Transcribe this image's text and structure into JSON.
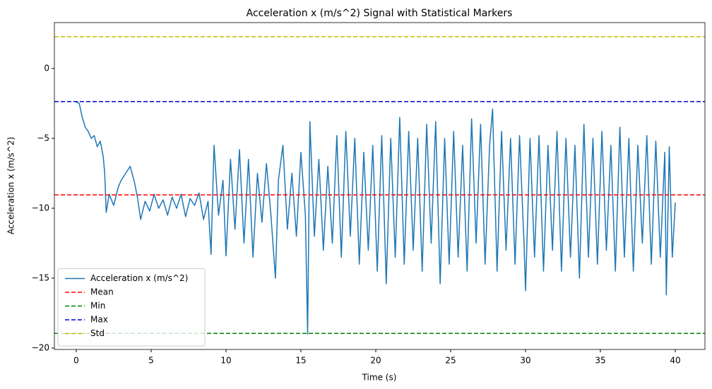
{
  "chart_data": {
    "type": "line",
    "title": "Acceleration x (m/s^2) Signal with Statistical Markers",
    "x_label": "Time (s)",
    "y_label": "Acceleration x (m/s^2)",
    "x": [
      0,
      0.2,
      0.4,
      0.6,
      0.8,
      1.0,
      1.2,
      1.4,
      1.6,
      1.8,
      1.9,
      2.0,
      2.2,
      2.5,
      2.8,
      3.0,
      3.3,
      3.6,
      3.9,
      4.1,
      4.3,
      4.6,
      4.9,
      5.2,
      5.5,
      5.8,
      6.1,
      6.4,
      6.7,
      7.0,
      7.3,
      7.6,
      7.9,
      8.2,
      8.5,
      8.8,
      9.0,
      9.2,
      9.5,
      9.8,
      10.0,
      10.3,
      10.6,
      10.9,
      11.2,
      11.5,
      11.8,
      12.1,
      12.4,
      12.7,
      13.0,
      13.3,
      13.5,
      13.8,
      14.1,
      14.4,
      14.7,
      15.0,
      15.3,
      15.45,
      15.6,
      15.9,
      16.2,
      16.5,
      16.8,
      17.1,
      17.4,
      17.7,
      18.0,
      18.3,
      18.6,
      18.9,
      19.2,
      19.5,
      19.8,
      20.1,
      20.4,
      20.7,
      21.0,
      21.3,
      21.6,
      21.9,
      22.2,
      22.5,
      22.8,
      23.1,
      23.4,
      23.7,
      24.0,
      24.3,
      24.6,
      24.9,
      25.2,
      25.5,
      25.8,
      26.1,
      26.4,
      26.7,
      27.0,
      27.3,
      27.6,
      27.8,
      28.1,
      28.4,
      28.7,
      29.0,
      29.3,
      29.6,
      29.9,
      30.0,
      30.3,
      30.6,
      30.9,
      31.2,
      31.5,
      31.8,
      32.1,
      32.4,
      32.7,
      33.0,
      33.3,
      33.6,
      33.9,
      34.2,
      34.5,
      34.8,
      35.1,
      35.4,
      35.7,
      36.0,
      36.3,
      36.6,
      36.9,
      37.2,
      37.5,
      37.8,
      38.1,
      38.4,
      38.7,
      39.0,
      39.3,
      39.4,
      39.6,
      39.8,
      40.0
    ],
    "series": [
      {
        "name": "Acceleration x (m/s^2)",
        "color": "#1f77b4",
        "values": [
          -2.4,
          -2.5,
          -3.5,
          -4.2,
          -4.5,
          -5.0,
          -4.8,
          -5.6,
          -5.2,
          -6.3,
          -7.5,
          -10.3,
          -9.0,
          -9.8,
          -8.5,
          -8.0,
          -7.5,
          -7.0,
          -8.2,
          -9.3,
          -10.8,
          -9.5,
          -10.2,
          -9.0,
          -10.0,
          -9.4,
          -10.5,
          -9.2,
          -10.0,
          -9.0,
          -10.6,
          -9.3,
          -9.8,
          -8.9,
          -10.8,
          -9.5,
          -13.3,
          -5.5,
          -10.5,
          -8.0,
          -13.4,
          -6.5,
          -11.5,
          -5.8,
          -12.5,
          -6.5,
          -13.5,
          -7.5,
          -11.0,
          -6.8,
          -10.5,
          -15.0,
          -8.0,
          -5.5,
          -11.5,
          -7.5,
          -12.0,
          -6.0,
          -10.5,
          -19.0,
          -3.8,
          -12.0,
          -6.5,
          -13.0,
          -7.0,
          -12.5,
          -4.8,
          -13.5,
          -4.5,
          -12.0,
          -5.0,
          -14.0,
          -6.0,
          -13.0,
          -5.5,
          -14.5,
          -4.8,
          -15.4,
          -5.0,
          -13.5,
          -3.5,
          -14.0,
          -4.5,
          -13.0,
          -5.0,
          -14.5,
          -4.0,
          -12.5,
          -3.8,
          -15.4,
          -5.0,
          -14.0,
          -4.5,
          -13.5,
          -5.5,
          -14.5,
          -3.6,
          -12.5,
          -4.0,
          -14.0,
          -5.5,
          -2.9,
          -14.5,
          -4.5,
          -13.0,
          -5.0,
          -14.0,
          -4.8,
          -12.5,
          -15.9,
          -5.0,
          -13.5,
          -4.8,
          -14.5,
          -5.5,
          -13.0,
          -4.5,
          -14.5,
          -5.0,
          -13.5,
          -5.5,
          -15.0,
          -4.0,
          -13.5,
          -5.0,
          -14.0,
          -4.5,
          -13.0,
          -5.5,
          -14.5,
          -4.2,
          -13.5,
          -5.0,
          -14.5,
          -5.5,
          -12.5,
          -4.8,
          -14.0,
          -5.2,
          -13.5,
          -6.0,
          -16.2,
          -5.6,
          -13.5,
          -9.6
        ]
      }
    ],
    "reference_lines": [
      {
        "name": "Mean",
        "color": "#ff0000",
        "value": -9.04
      },
      {
        "name": "Min",
        "color": "#008000",
        "value": -18.95
      },
      {
        "name": "Max",
        "color": "#0000cd",
        "value": -2.37
      },
      {
        "name": "Std",
        "color": "#bfbf00",
        "value": 2.27
      }
    ],
    "line_style_reference": "dashed",
    "xlim": [
      -1.46,
      41.98
    ],
    "ylim": [
      -20.1,
      3.28
    ],
    "xticks": [
      0,
      5,
      10,
      15,
      20,
      25,
      30,
      35,
      40
    ],
    "yticks": [
      {
        "value": -20,
        "label": "−20"
      },
      {
        "value": -15,
        "label": "−15"
      },
      {
        "value": -10,
        "label": "−10"
      },
      {
        "value": -5,
        "label": "−5"
      },
      0
    ],
    "legend": "lower left"
  }
}
